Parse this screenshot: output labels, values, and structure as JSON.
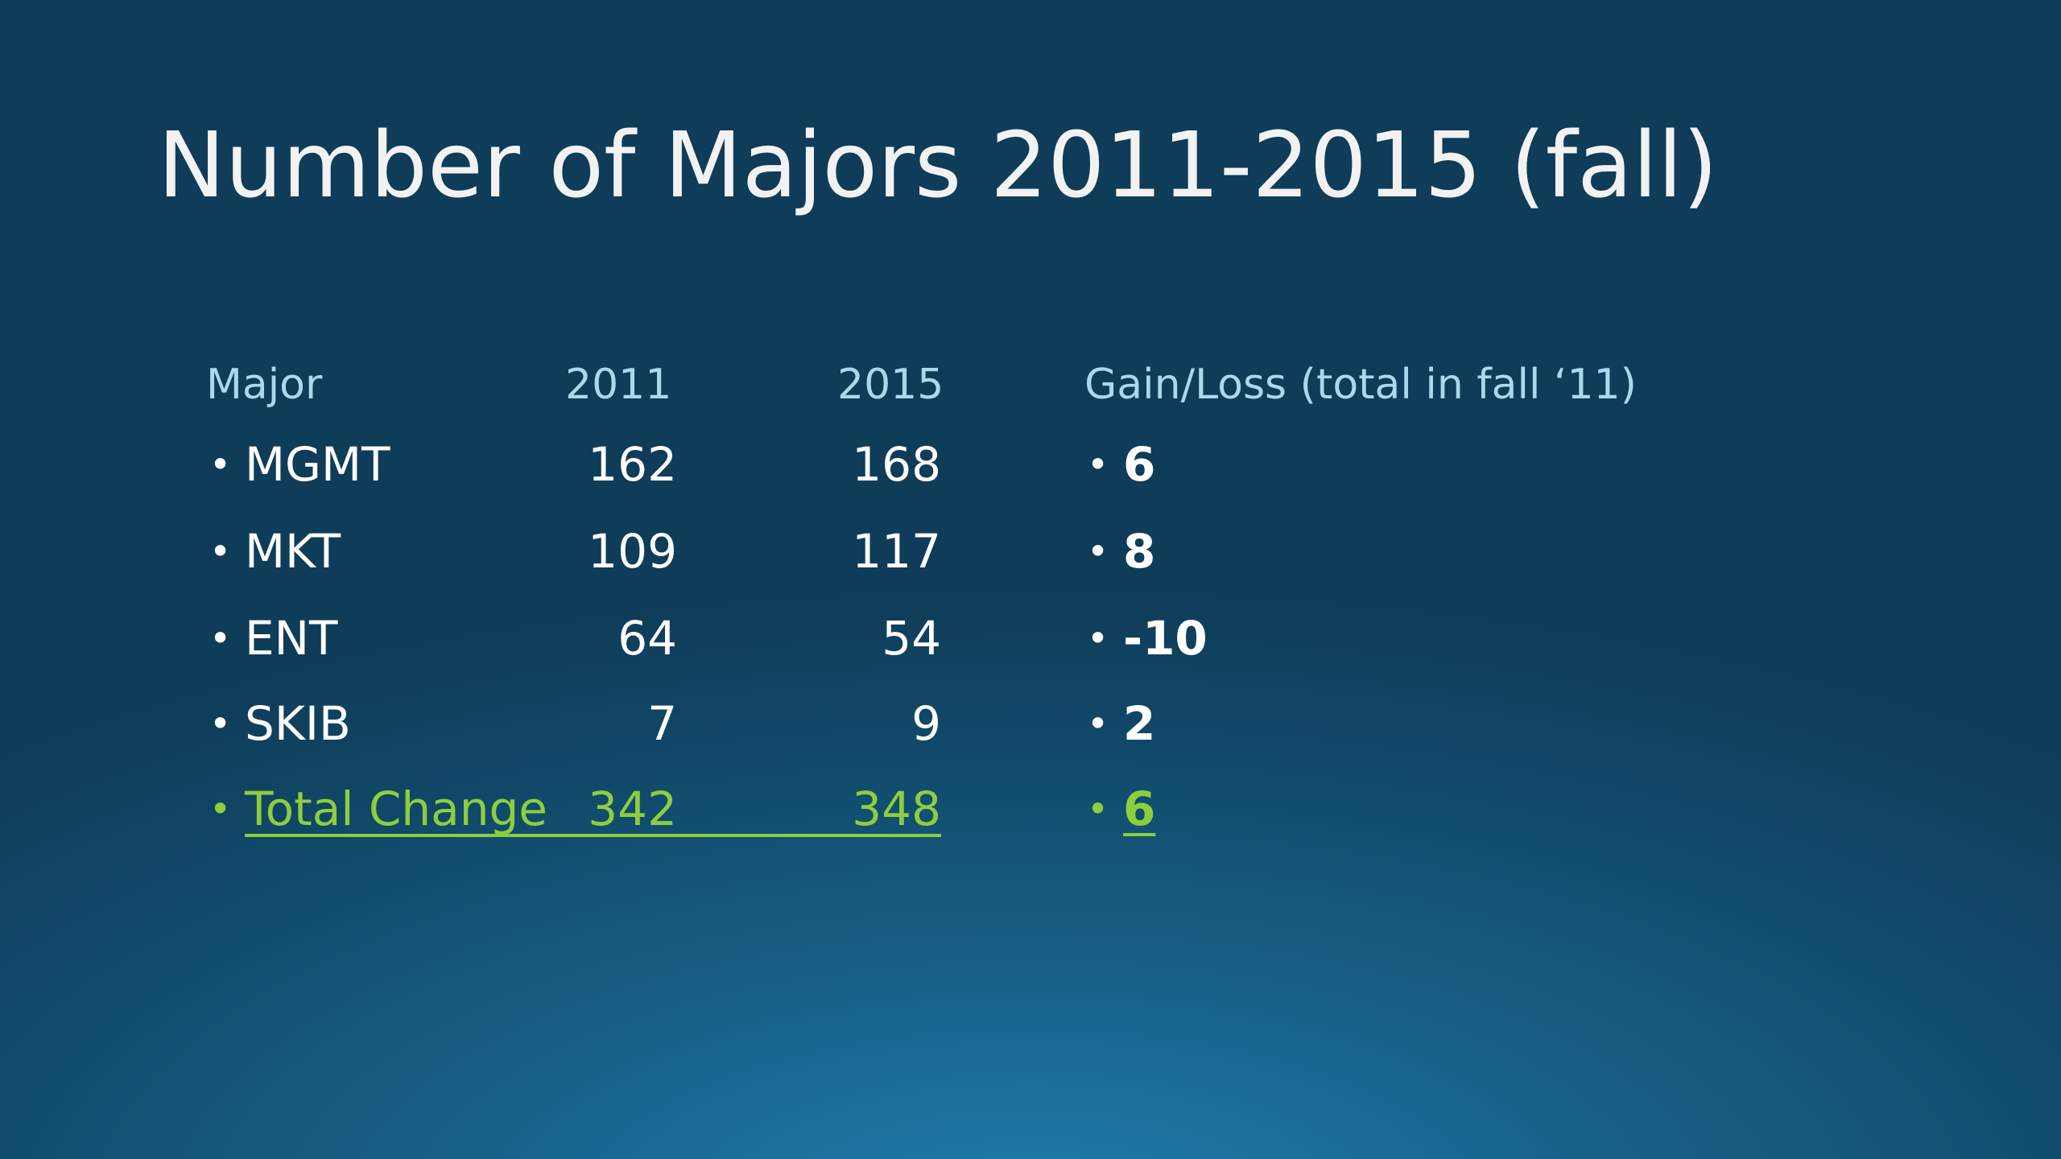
{
  "title": "Number of Majors 2011-2015 (fall)",
  "table": {
    "header": [
      "Major",
      "2011",
      "2015",
      "Gain/Loss (total in fall ‘11)"
    ],
    "rows": [
      [
        "MGMT",
        162,
        168,
        6
      ],
      [
        "MKT",
        109,
        117,
        8
      ],
      [
        "ENT",
        64,
        54,
        -10
      ],
      [
        "SKIB",
        7,
        9,
        2
      ]
    ],
    "total": [
      "Total Change",
      342,
      348,
      6
    ]
  }
}
